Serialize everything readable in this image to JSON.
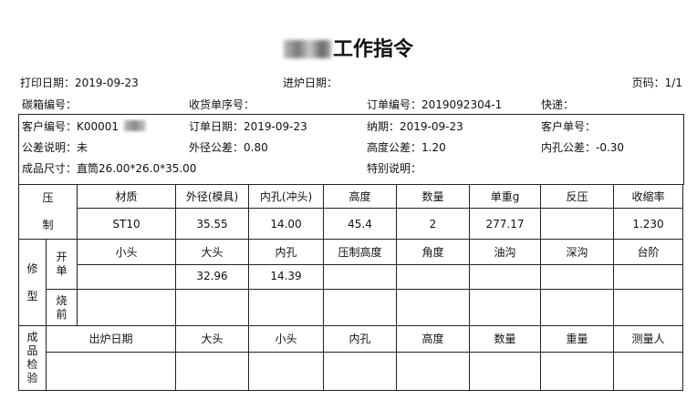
{
  "title": "工作指令",
  "header": {
    "print_date": "打印日期：2019-09-23",
    "furnace_date": "进炉日期：",
    "page": "页码：1/1",
    "box_no": "碳箱编号：",
    "receipt_seq": "收货单序号：",
    "order_no": "订单编号：2019092304-1",
    "express": "快递："
  },
  "info": {
    "customer_no": "客户编号：K00001",
    "order_date": "订单日期：2019-09-23",
    "delivery": "纳期：2019-09-23",
    "customer_order": "客户单号：",
    "tolerance_note": "公差说明：未",
    "od_tol": "外径公差：0.80",
    "height_tol": "高度公差：1.20",
    "id_tol": "内孔公差：-0.30",
    "size": "成品尺寸：直筒26.00*26.0*35.00",
    "special": "特别说明："
  },
  "press": {
    "label_top": "压",
    "label_bottom": "制",
    "headers": [
      "材质",
      "外径(模具)",
      "内孔(冲头)",
      "高度",
      "数量",
      "单重g",
      "反压",
      "收缩率"
    ],
    "values": [
      "ST10",
      "35.55",
      "14.00",
      "45.4",
      "2",
      "277.17",
      "",
      "1.230"
    ]
  },
  "trim": {
    "label_top": "修",
    "label_bottom": "型",
    "open_label": [
      "开",
      "单"
    ],
    "pre_label": [
      "烧",
      "前"
    ],
    "headers": [
      "小头",
      "大头",
      "内孔",
      "压制高度",
      "角度",
      "油沟",
      "深沟",
      "台阶"
    ],
    "values": [
      "",
      "32.96",
      "14.39",
      "",
      "",
      "",
      "",
      ""
    ]
  },
  "inspect": {
    "label": [
      "成",
      "品",
      "检",
      "验"
    ],
    "headers": [
      "出炉日期",
      "大头",
      "小头",
      "内孔",
      "高度",
      "数量",
      "重量",
      "测量人"
    ]
  }
}
